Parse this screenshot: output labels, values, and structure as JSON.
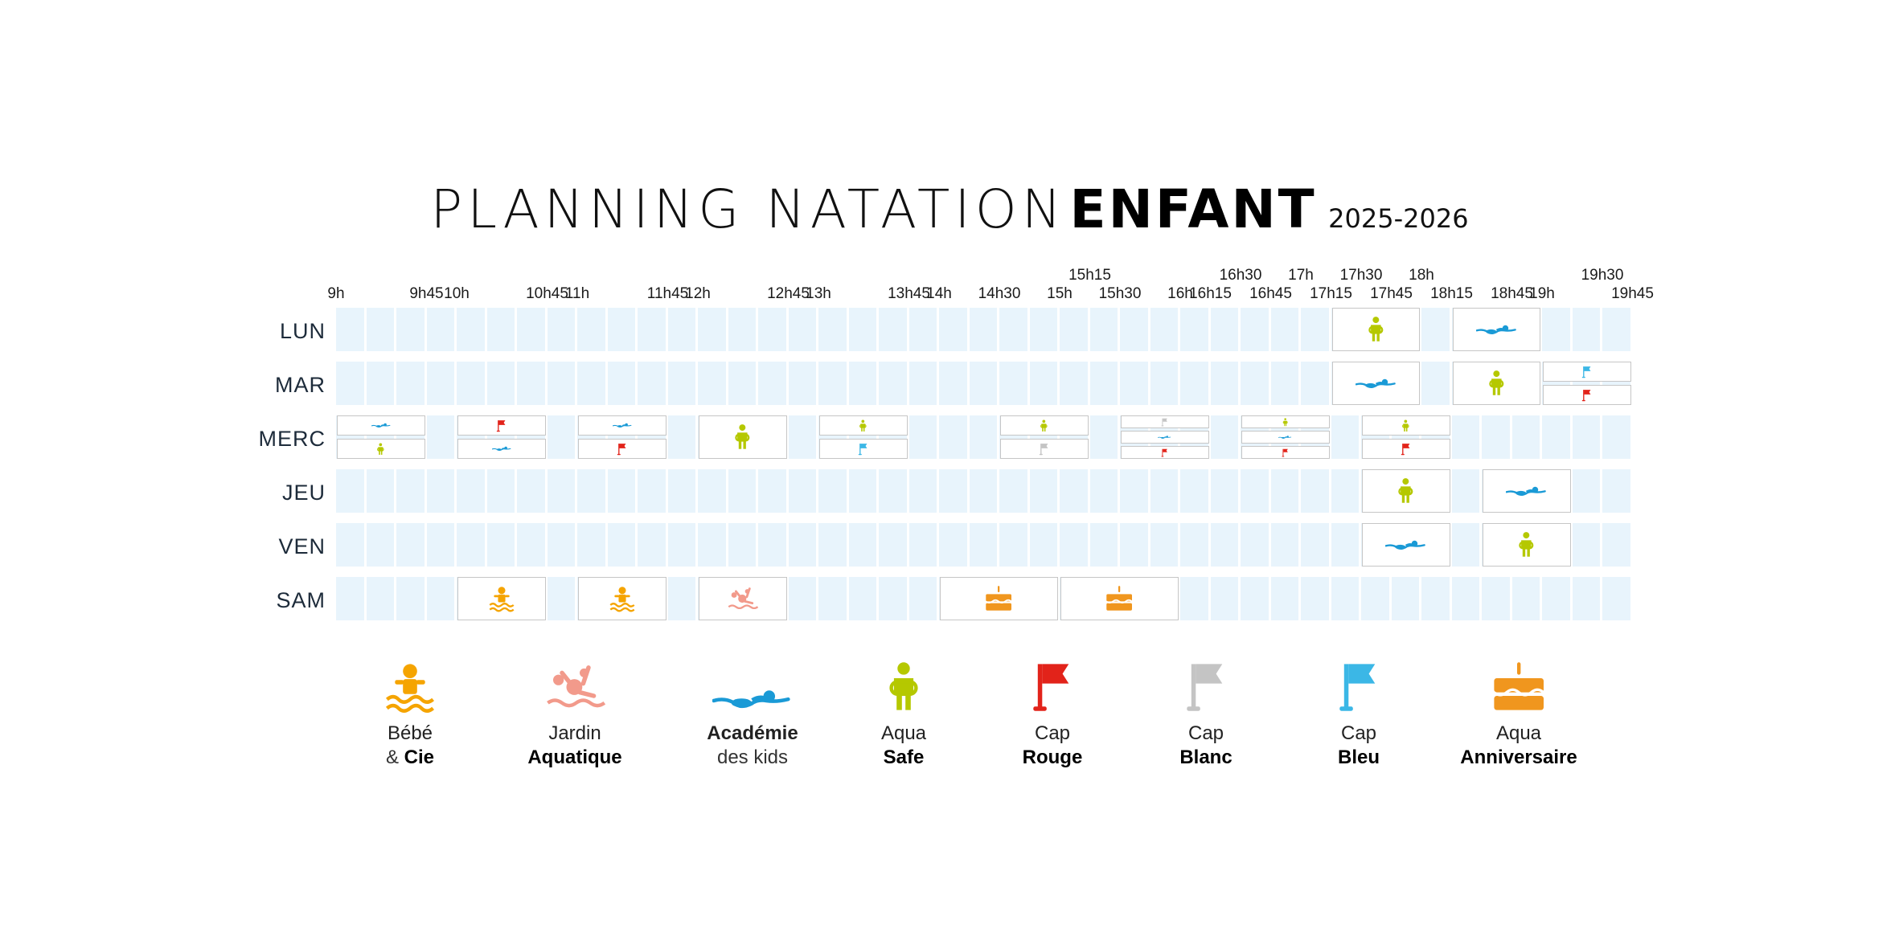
{
  "title": {
    "main": "PLANNING NATATION",
    "bold": "ENFANT",
    "year": "2025-2026"
  },
  "colors": {
    "cell": "#e8f4fc",
    "bebe": "#f5a400",
    "jardin": "#f29a8b",
    "academie": "#1a9ad6",
    "safe": "#b5c800",
    "rouge": "#e2231a",
    "blanc": "#c4c4c4",
    "bleu": "#3bb7e6",
    "anniv": "#f0961e"
  },
  "time_labels": [
    {
      "label": "9h",
      "row": "low"
    },
    {
      "label": "9h45",
      "row": "low"
    },
    {
      "label": "10h",
      "row": "low"
    },
    {
      "label": "10h45",
      "row": "low"
    },
    {
      "label": "11h",
      "row": "low"
    },
    {
      "label": "11h45",
      "row": "low"
    },
    {
      "label": "12h",
      "row": "low"
    },
    {
      "label": "12h45",
      "row": "low"
    },
    {
      "label": "13h",
      "row": "low"
    },
    {
      "label": "13h45",
      "row": "low"
    },
    {
      "label": "14h",
      "row": "low"
    },
    {
      "label": "14h30",
      "row": "low"
    },
    {
      "label": "15h",
      "row": "low"
    },
    {
      "label": "15h15",
      "row": "high"
    },
    {
      "label": "15h30",
      "row": "low"
    },
    {
      "label": "16h",
      "row": "low"
    },
    {
      "label": "16h15",
      "row": "low"
    },
    {
      "label": "16h30",
      "row": "high"
    },
    {
      "label": "16h45",
      "row": "low"
    },
    {
      "label": "17h",
      "row": "high"
    },
    {
      "label": "17h15",
      "row": "low"
    },
    {
      "label": "17h30",
      "row": "high"
    },
    {
      "label": "17h45",
      "row": "low"
    },
    {
      "label": "18h",
      "row": "high"
    },
    {
      "label": "18h15",
      "row": "low"
    },
    {
      "label": "18h45",
      "row": "low"
    },
    {
      "label": "19h",
      "row": "low"
    },
    {
      "label": "19h30",
      "row": "high"
    },
    {
      "label": "19h45",
      "row": "low"
    }
  ],
  "days": [
    "LUN",
    "MAR",
    "MERC",
    "JEU",
    "VEN",
    "SAM"
  ],
  "sessions": [
    {
      "day": "LUN",
      "start": "17h15",
      "end": "18h",
      "icon": "safe-icon"
    },
    {
      "day": "LUN",
      "start": "18h15",
      "end": "19h",
      "icon": "academie-icon"
    },
    {
      "day": "MAR",
      "start": "17h15",
      "end": "18h",
      "icon": "academie-icon"
    },
    {
      "day": "MAR",
      "start": "18h15",
      "end": "19h",
      "icon": "safe-icon"
    },
    {
      "day": "MAR",
      "start": "19h",
      "end": "19h45",
      "icon": "cap-bleu-icon",
      "half": "top"
    },
    {
      "day": "MAR",
      "start": "19h",
      "end": "19h45",
      "icon": "cap-rouge-icon",
      "half": "bottom"
    },
    {
      "day": "MERC",
      "start": "9h",
      "end": "9h45",
      "icon": "academie-icon",
      "half": "top"
    },
    {
      "day": "MERC",
      "start": "9h",
      "end": "9h45",
      "icon": "safe-icon",
      "half": "bottom"
    },
    {
      "day": "MERC",
      "start": "10h",
      "end": "10h45",
      "icon": "cap-rouge-icon",
      "half": "top"
    },
    {
      "day": "MERC",
      "start": "10h",
      "end": "10h45",
      "icon": "academie-icon",
      "half": "bottom"
    },
    {
      "day": "MERC",
      "start": "11h",
      "end": "11h45",
      "icon": "academie-icon",
      "half": "top"
    },
    {
      "day": "MERC",
      "start": "11h",
      "end": "11h45",
      "icon": "cap-rouge-icon",
      "half": "bottom"
    },
    {
      "day": "MERC",
      "start": "12h",
      "end": "12h45",
      "icon": "safe-icon"
    },
    {
      "day": "MERC",
      "start": "13h",
      "end": "13h45",
      "icon": "safe-icon",
      "half": "top"
    },
    {
      "day": "MERC",
      "start": "13h",
      "end": "13h45",
      "icon": "cap-bleu-icon",
      "half": "bottom"
    },
    {
      "day": "MERC",
      "start": "14h30",
      "end": "15h15",
      "icon": "safe-icon",
      "half": "top"
    },
    {
      "day": "MERC",
      "start": "14h30",
      "end": "15h15",
      "icon": "cap-blanc-icon",
      "half": "bottom"
    },
    {
      "day": "MERC",
      "start": "15h30",
      "end": "16h15",
      "icon": "cap-blanc-icon",
      "half": "t1"
    },
    {
      "day": "MERC",
      "start": "15h30",
      "end": "16h15",
      "icon": "academie-icon",
      "half": "t2"
    },
    {
      "day": "MERC",
      "start": "15h30",
      "end": "16h15",
      "icon": "cap-rouge-icon",
      "half": "t3"
    },
    {
      "day": "MERC",
      "start": "16h30",
      "end": "17h15",
      "icon": "safe-icon",
      "half": "t1"
    },
    {
      "day": "MERC",
      "start": "16h30",
      "end": "17h15",
      "icon": "academie-icon",
      "half": "t2"
    },
    {
      "day": "MERC",
      "start": "16h30",
      "end": "17h15",
      "icon": "cap-rouge-icon",
      "half": "t3"
    },
    {
      "day": "MERC",
      "start": "17h30",
      "end": "18h15",
      "icon": "safe-icon",
      "half": "top"
    },
    {
      "day": "MERC",
      "start": "17h30",
      "end": "18h15",
      "icon": "cap-rouge-icon",
      "half": "bottom"
    },
    {
      "day": "JEU",
      "start": "17h30",
      "end": "18h15",
      "icon": "safe-icon"
    },
    {
      "day": "JEU",
      "start": "18h30",
      "end": "19h15",
      "icon": "academie-icon"
    },
    {
      "day": "VEN",
      "start": "17h30",
      "end": "18h15",
      "icon": "academie-icon"
    },
    {
      "day": "VEN",
      "start": "18h30",
      "end": "19h15",
      "icon": "safe-icon"
    },
    {
      "day": "SAM",
      "start": "10h",
      "end": "10h45",
      "icon": "bebe-icon"
    },
    {
      "day": "SAM",
      "start": "11h",
      "end": "11h45",
      "icon": "bebe-icon"
    },
    {
      "day": "SAM",
      "start": "12h",
      "end": "12h45",
      "icon": "jardin-icon"
    },
    {
      "day": "SAM",
      "start": "14h",
      "end": "15h",
      "icon": "anniv-icon"
    },
    {
      "day": "SAM",
      "start": "15h",
      "end": "16h",
      "icon": "anniv-icon"
    }
  ],
  "legend": [
    {
      "icon": "bebe-icon",
      "line1": "Bébé",
      "line2_pre": "& ",
      "line2_bold": "Cie",
      "bold_line": 2
    },
    {
      "icon": "jardin-icon",
      "line1": "Jardin",
      "line2_pre": "",
      "line2_bold": "Aquatique",
      "bold_line": 2
    },
    {
      "icon": "academie-icon",
      "line1": "Académie",
      "line2_pre": "des kids",
      "line2_bold": "",
      "bold_line": 1
    },
    {
      "icon": "safe-icon",
      "line1": "Aqua",
      "line2_pre": "",
      "line2_bold": "Safe",
      "bold_line": 2
    },
    {
      "icon": "cap-rouge-icon",
      "line1": "Cap",
      "line2_pre": "",
      "line2_bold": "Rouge",
      "bold_line": 2
    },
    {
      "icon": "cap-blanc-icon",
      "line1": "Cap",
      "line2_pre": "",
      "line2_bold": "Blanc",
      "bold_line": 2
    },
    {
      "icon": "cap-bleu-icon",
      "line1": "Cap",
      "line2_pre": "",
      "line2_bold": "Bleu",
      "bold_line": 2
    },
    {
      "icon": "anniv-icon",
      "line1": "Aqua",
      "line2_pre": "",
      "line2_bold": "Anniversaire",
      "bold_line": 2
    }
  ]
}
